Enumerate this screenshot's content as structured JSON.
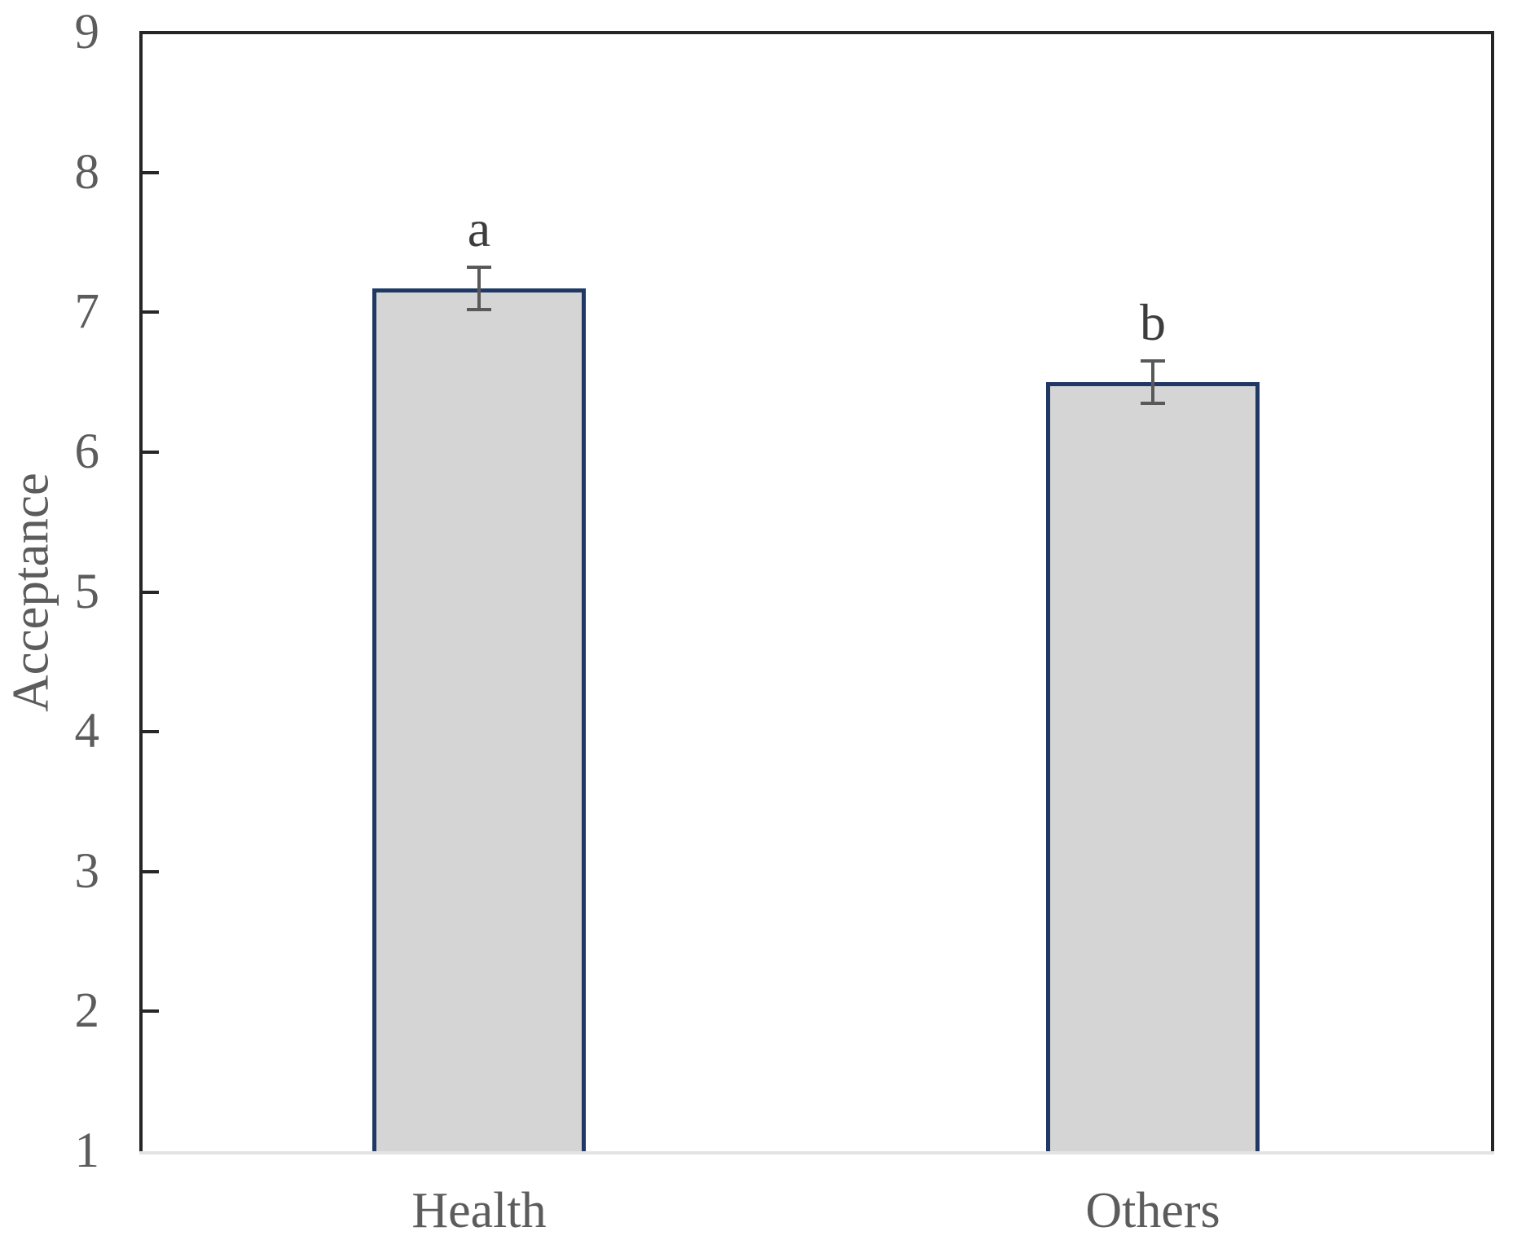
{
  "chart_data": {
    "type": "bar",
    "title": "",
    "xlabel": "",
    "ylabel": "Acceptance",
    "categories": [
      "Health",
      "Others"
    ],
    "values": [
      7.17,
      6.5
    ],
    "error_bars": [
      0.15,
      0.15
    ],
    "sig_letters": [
      "a",
      "b"
    ],
    "ylim": [
      1,
      9
    ],
    "yticks": [
      1,
      2,
      3,
      4,
      5,
      6,
      7,
      8,
      9
    ],
    "grid": false,
    "legend": false,
    "colors": {
      "bar_fill": "#D5D5D5",
      "bar_border": "#1F3864",
      "error_bar": "#595959",
      "axis_frame": "#262626",
      "baseline": "#E3E3E3",
      "tick_text": "#5C5C5C",
      "letter_text": "#3D3D3D"
    }
  }
}
